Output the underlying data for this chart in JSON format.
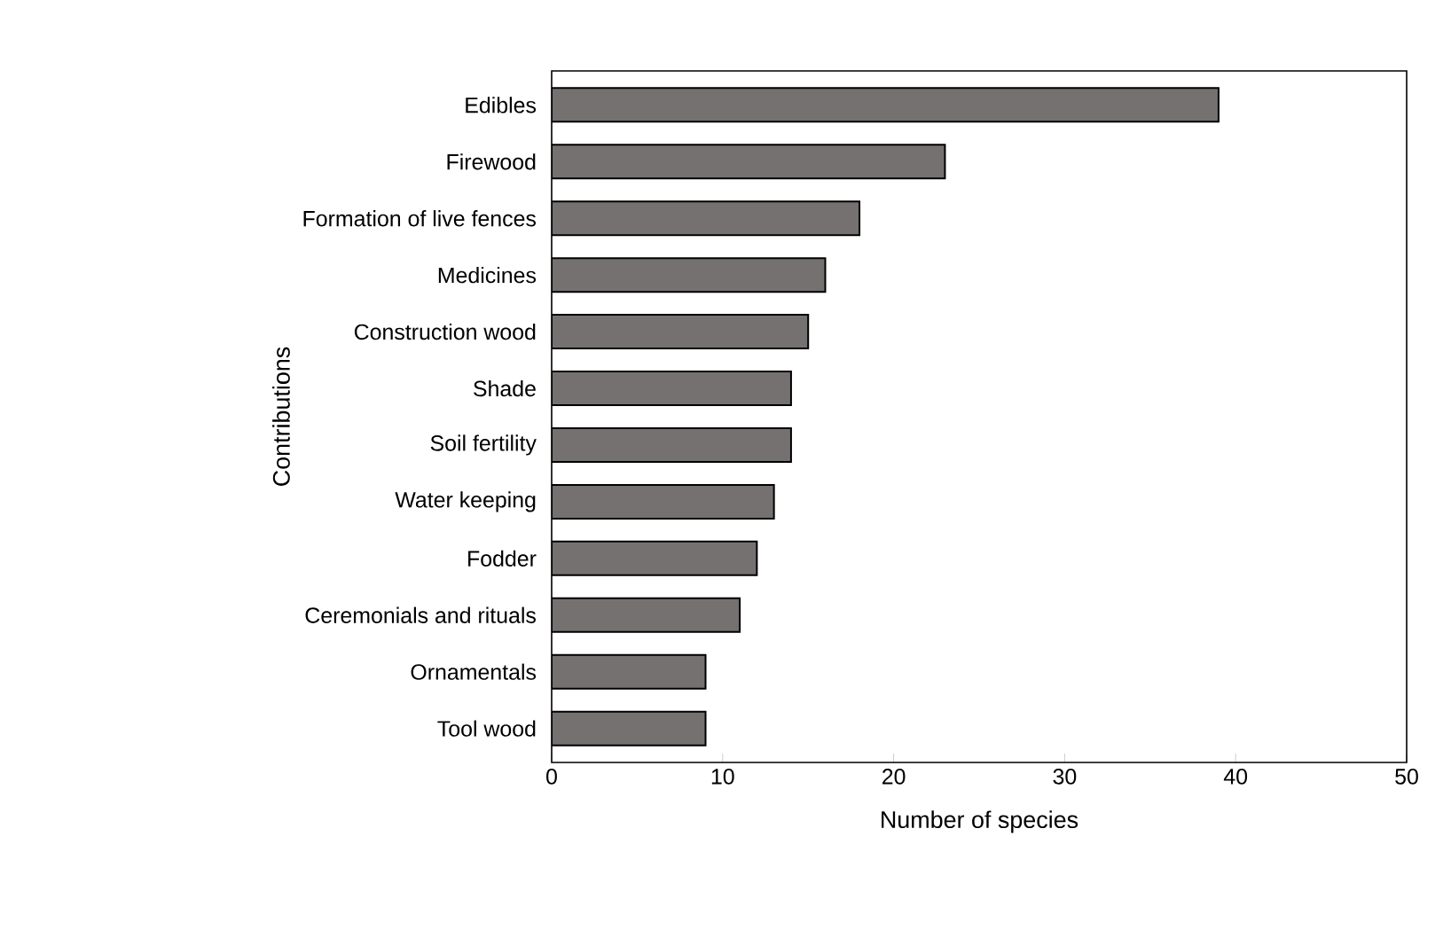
{
  "chart_data": {
    "type": "bar",
    "orientation": "horizontal",
    "xlabel": "Number of species",
    "ylabel": "Contributions",
    "categories": [
      "Edibles",
      "Firewood",
      "Formation of live fences",
      "Medicines",
      "Construction wood",
      "Shade",
      "Soil fertility",
      "Water keeping",
      "Fodder",
      "Ceremonials and rituals",
      "Ornamentals",
      "Tool wood"
    ],
    "values": [
      39,
      23,
      18,
      16,
      15,
      14,
      14,
      13,
      12,
      11,
      9,
      9
    ],
    "color": "#767171",
    "xlim": [
      0,
      50
    ],
    "xticks": [
      0,
      10,
      20,
      30,
      40,
      50
    ]
  }
}
